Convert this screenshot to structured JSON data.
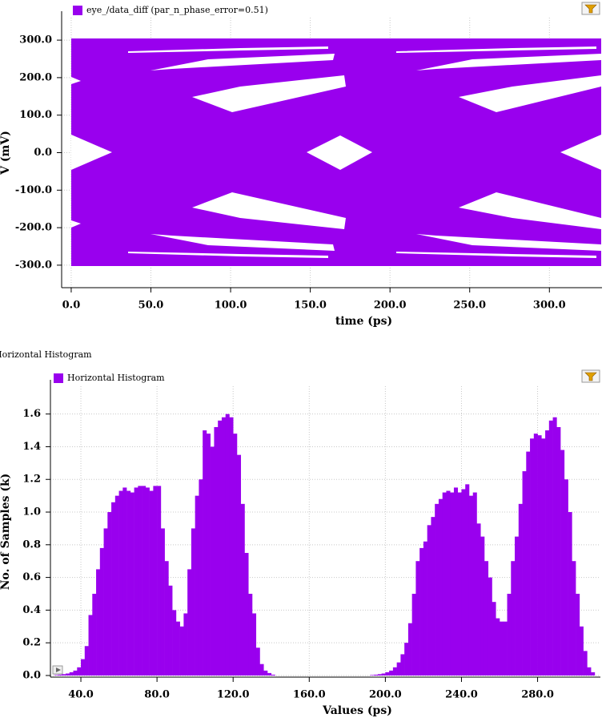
{
  "chart_data": [
    {
      "type": "eye",
      "series": [
        {
          "name": "eye_/data_diff (par_n_phase_error=0.51)",
          "color": "#9900ee"
        }
      ],
      "xlabel": "time (ps)",
      "ylabel": "V (mV)",
      "xlim": [
        -6,
        333
      ],
      "ylim": [
        -360,
        360
      ],
      "xticks": [
        {
          "value": 0,
          "label": "0.0"
        },
        {
          "value": 50,
          "label": "50.0"
        },
        {
          "value": 100,
          "label": "100.0"
        },
        {
          "value": 150,
          "label": "150.0"
        },
        {
          "value": 200,
          "label": "200.0"
        },
        {
          "value": 250,
          "label": "250.0"
        },
        {
          "value": 300,
          "label": "300.0"
        }
      ],
      "yticks": [
        {
          "value": -300,
          "label": "-300.0"
        },
        {
          "value": -200,
          "label": "-200.0"
        },
        {
          "value": -100,
          "label": "-100.0"
        },
        {
          "value": 0,
          "label": "0.0"
        },
        {
          "value": 100,
          "label": "100.0"
        },
        {
          "value": 200,
          "label": "200.0"
        },
        {
          "value": 300,
          "label": "300.0"
        }
      ],
      "grid": true
    },
    {
      "type": "histogram",
      "title": "Horizontal Histogram",
      "series": [
        {
          "name": "Horizontal Histogram",
          "color": "#9900ee"
        }
      ],
      "xlabel": "Values (ps)",
      "ylabel": "No. of Samples (k)",
      "bins": [
        26,
        28,
        30,
        32,
        34,
        36,
        38,
        40,
        42,
        44,
        46,
        48,
        50,
        52,
        54,
        56,
        58,
        60,
        62,
        64,
        66,
        68,
        70,
        72,
        74,
        76,
        78,
        80,
        82,
        84,
        86,
        88,
        90,
        92,
        94,
        96,
        98,
        100,
        102,
        104,
        106,
        108,
        110,
        112,
        114,
        116,
        118,
        120,
        122,
        124,
        126,
        128,
        130,
        132,
        134,
        136,
        138,
        140,
        142,
        144,
        146,
        148,
        150,
        152,
        154,
        156,
        158,
        160,
        162,
        164,
        166,
        168,
        170,
        172,
        174,
        176,
        178,
        180,
        182,
        184,
        186,
        188,
        190,
        192,
        194,
        196,
        198,
        200,
        202,
        204,
        206,
        208,
        210,
        212,
        214,
        216,
        218,
        220,
        222,
        224,
        226,
        228,
        230,
        232,
        234,
        236,
        238,
        240,
        242,
        244,
        246,
        248,
        250,
        252,
        254,
        256,
        258,
        260,
        262,
        264,
        266,
        268,
        270,
        272,
        274,
        276,
        278,
        280,
        282,
        284,
        286,
        288,
        290,
        292,
        294,
        296,
        298,
        300,
        302,
        304,
        306,
        308,
        310
      ],
      "counts": [
        0.003,
        0.005,
        0.008,
        0.012,
        0.02,
        0.03,
        0.05,
        0.1,
        0.18,
        0.37,
        0.5,
        0.65,
        0.78,
        0.9,
        1.0,
        1.06,
        1.1,
        1.13,
        1.15,
        1.13,
        1.12,
        1.15,
        1.16,
        1.16,
        1.15,
        1.13,
        1.16,
        1.16,
        0.9,
        0.7,
        0.55,
        0.4,
        0.33,
        0.3,
        0.38,
        0.65,
        0.9,
        1.1,
        1.2,
        1.5,
        1.48,
        1.4,
        1.52,
        1.56,
        1.58,
        1.6,
        1.58,
        1.48,
        1.35,
        1.05,
        0.75,
        0.5,
        0.38,
        0.17,
        0.07,
        0.03,
        0.015,
        0.005,
        0,
        0,
        0,
        0,
        0,
        0,
        0,
        0,
        0,
        0,
        0,
        0,
        0,
        0,
        0,
        0,
        0,
        0,
        0,
        0,
        0,
        0,
        0,
        0,
        0,
        0.003,
        0.005,
        0.008,
        0.012,
        0.02,
        0.03,
        0.05,
        0.08,
        0.13,
        0.2,
        0.32,
        0.5,
        0.7,
        0.78,
        0.82,
        0.92,
        0.97,
        1.05,
        1.08,
        1.12,
        1.13,
        1.12,
        1.15,
        1.12,
        1.14,
        1.17,
        1.1,
        1.12,
        0.93,
        0.85,
        0.7,
        0.6,
        0.45,
        0.35,
        0.33,
        0.33,
        0.5,
        0.7,
        0.85,
        1.05,
        1.25,
        1.37,
        1.45,
        1.48,
        1.47,
        1.45,
        1.5,
        1.56,
        1.58,
        1.52,
        1.38,
        1.2,
        1.0,
        0.7,
        0.5,
        0.3,
        0.15,
        0.05,
        0.02
      ],
      "xlim": [
        24,
        313
      ],
      "ylim": [
        -0.01,
        1.77
      ],
      "xticks": [
        {
          "value": 40,
          "label": "40.0"
        },
        {
          "value": 80,
          "label": "80.0"
        },
        {
          "value": 120,
          "label": "120.0"
        },
        {
          "value": 160,
          "label": "160.0"
        },
        {
          "value": 200,
          "label": "200.0"
        },
        {
          "value": 240,
          "label": "240.0"
        },
        {
          "value": 280,
          "label": "280.0"
        }
      ],
      "yticks": [
        {
          "value": 0,
          "label": "0.0"
        },
        0.2,
        0.4,
        0.6,
        0.8,
        {
          "value": 1,
          "label": "1.0"
        },
        1.2,
        1.4,
        1.6
      ],
      "grid": true
    }
  ]
}
